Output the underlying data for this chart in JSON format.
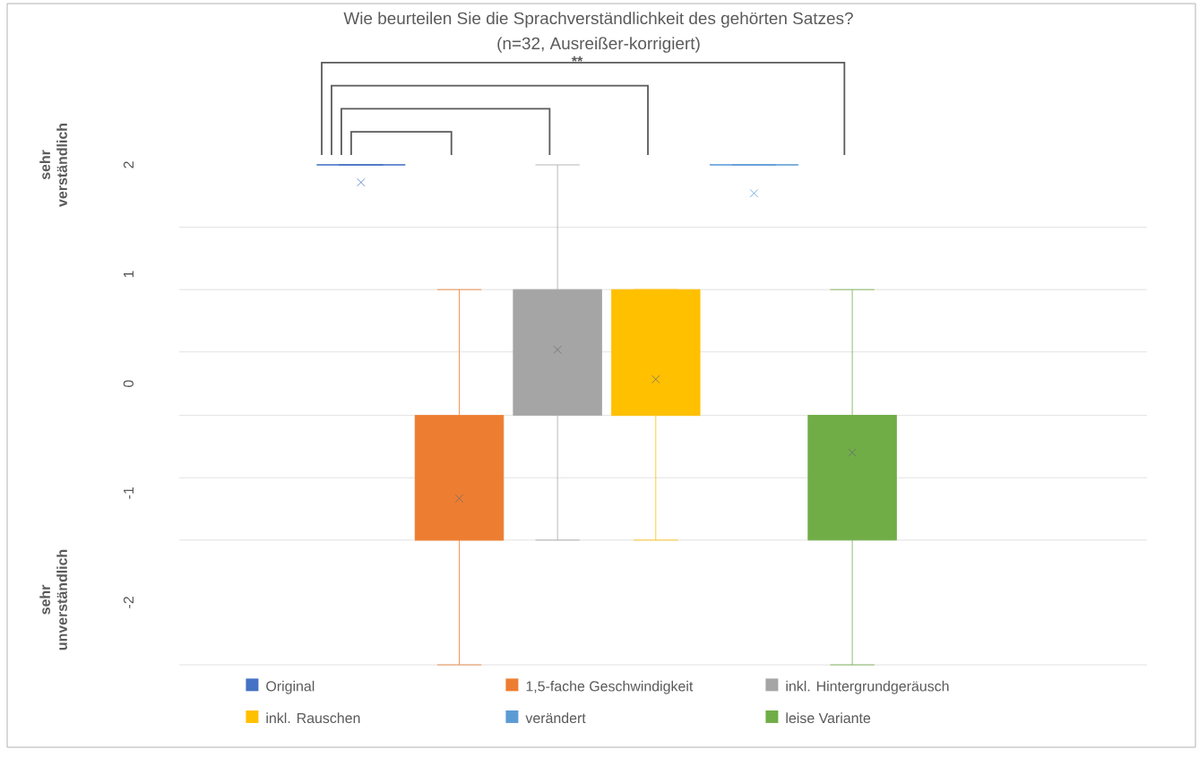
{
  "chart_data": {
    "type": "box",
    "title": "Wie beurteilen Sie die Sprachverständlichkeit des gehörten Satzes?",
    "subtitle": "(n=32, Ausreißer-korrigiert)",
    "categories": [
      null
    ],
    "series": [
      {
        "name": "Original",
        "color": "#4472c4",
        "boxes": [
          {
            "low": 2,
            "q1": 2,
            "median": 2,
            "q3": 2,
            "high": 2,
            "mean": 1.84
          }
        ]
      },
      {
        "name": "1,5-fache Geschwindigkeit",
        "color": "#ed7d31",
        "boxes": [
          {
            "low": -2.57,
            "q1": -1.43,
            "median": -1.43,
            "q3": -0.29,
            "high": 0.86,
            "mean": -1.05
          }
        ]
      },
      {
        "name": "inkl. Hintergrundgeräusch",
        "color": "#a5a5a5",
        "boxes": [
          {
            "low": -1.43,
            "q1": -0.29,
            "median": 0.29,
            "q3": 0.86,
            "high": 2,
            "mean": 0.31
          }
        ]
      },
      {
        "name": "inkl. Rauschen",
        "color": "#ffc000",
        "boxes": [
          {
            "low": -1.43,
            "q1": -0.29,
            "median": -0.29,
            "q3": 0.86,
            "high": 0.86,
            "mean": 0.04
          }
        ]
      },
      {
        "name": "verändert",
        "color": "#5b9bd5",
        "boxes": [
          {
            "low": 2,
            "q1": 2,
            "median": 2,
            "q3": 2,
            "high": 2,
            "mean": 1.74
          }
        ]
      },
      {
        "name": "leise Variante",
        "color": "#70ad47",
        "boxes": [
          {
            "low": -2.57,
            "q1": -1.43,
            "median": -0.29,
            "q3": -0.29,
            "high": 0.86,
            "mean": -0.63
          }
        ]
      }
    ],
    "ylim": [
      -2.57,
      2
    ],
    "yticks": [
      2,
      {
        "value": 1.43,
        "label": null
      },
      1,
      {
        "value": 0.86,
        "label": null
      },
      {
        "value": 0.29,
        "label": null
      },
      0,
      {
        "value": -0.29,
        "label": null
      },
      {
        "value": -0.86,
        "label": null
      },
      -1,
      {
        "value": -1.43,
        "label": null
      },
      -2,
      {
        "value": -2.57,
        "label": null
      }
    ],
    "grid": "y",
    "legend": "bottom",
    "marker": "cross",
    "tick_labels": "y",
    "annotations": [
      "**",
      "sehr verständlich",
      "sehr unverständlich"
    ]
  }
}
